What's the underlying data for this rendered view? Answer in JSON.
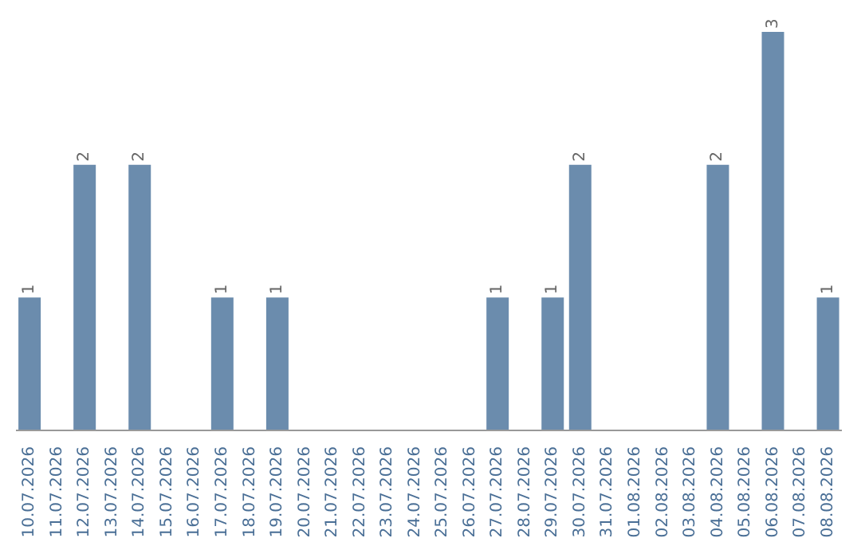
{
  "chart_data": {
    "type": "bar",
    "categories": [
      "10.07.2026",
      "11.07.2026",
      "12.07.2026",
      "13.07.2026",
      "14.07.2026",
      "15.07.2026",
      "16.07.2026",
      "17.07.2026",
      "18.07.2026",
      "19.07.2026",
      "20.07.2026",
      "21.07.2026",
      "22.07.2026",
      "23.07.2026",
      "24.07.2026",
      "25.07.2026",
      "26.07.2026",
      "27.07.2026",
      "28.07.2026",
      "29.07.2026",
      "30.07.2026",
      "31.07.2026",
      "01.08.2026",
      "02.08.2026",
      "03.08.2026",
      "04.08.2026",
      "05.08.2026",
      "06.08.2026",
      "07.08.2026",
      "08.08.2026"
    ],
    "values": [
      1,
      0,
      2,
      0,
      2,
      0,
      0,
      1,
      0,
      1,
      0,
      0,
      0,
      0,
      0,
      0,
      0,
      1,
      0,
      1,
      2,
      0,
      0,
      0,
      0,
      2,
      0,
      3,
      0,
      1
    ],
    "value_labels": [
      "1",
      null,
      "2",
      null,
      "2",
      null,
      null,
      "1",
      null,
      "1",
      null,
      null,
      null,
      null,
      null,
      null,
      null,
      "1",
      null,
      "1",
      "2",
      null,
      null,
      null,
      null,
      "2",
      null,
      "3",
      null,
      "1"
    ],
    "color": "#6b8cad",
    "tick_labels": "x"
  }
}
